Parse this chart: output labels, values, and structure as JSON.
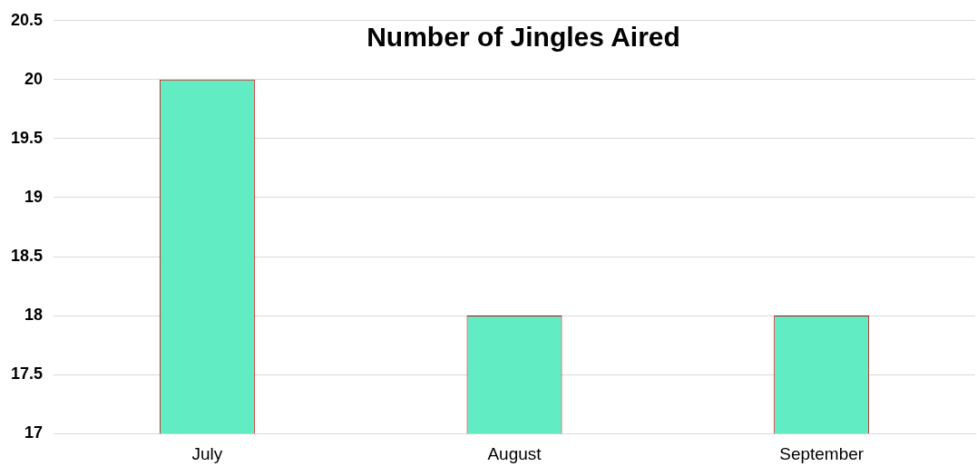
{
  "chart_data": {
    "type": "bar",
    "title": "Number of Jingles Aired",
    "categories": [
      "July",
      "August",
      "September"
    ],
    "values": [
      20,
      18,
      18
    ],
    "color": "#62ecc4",
    "ylim": [
      17,
      20.5
    ],
    "yticks": [
      17,
      17.5,
      18,
      18.5,
      19,
      19.5,
      20,
      20.5
    ],
    "grid": "y"
  }
}
